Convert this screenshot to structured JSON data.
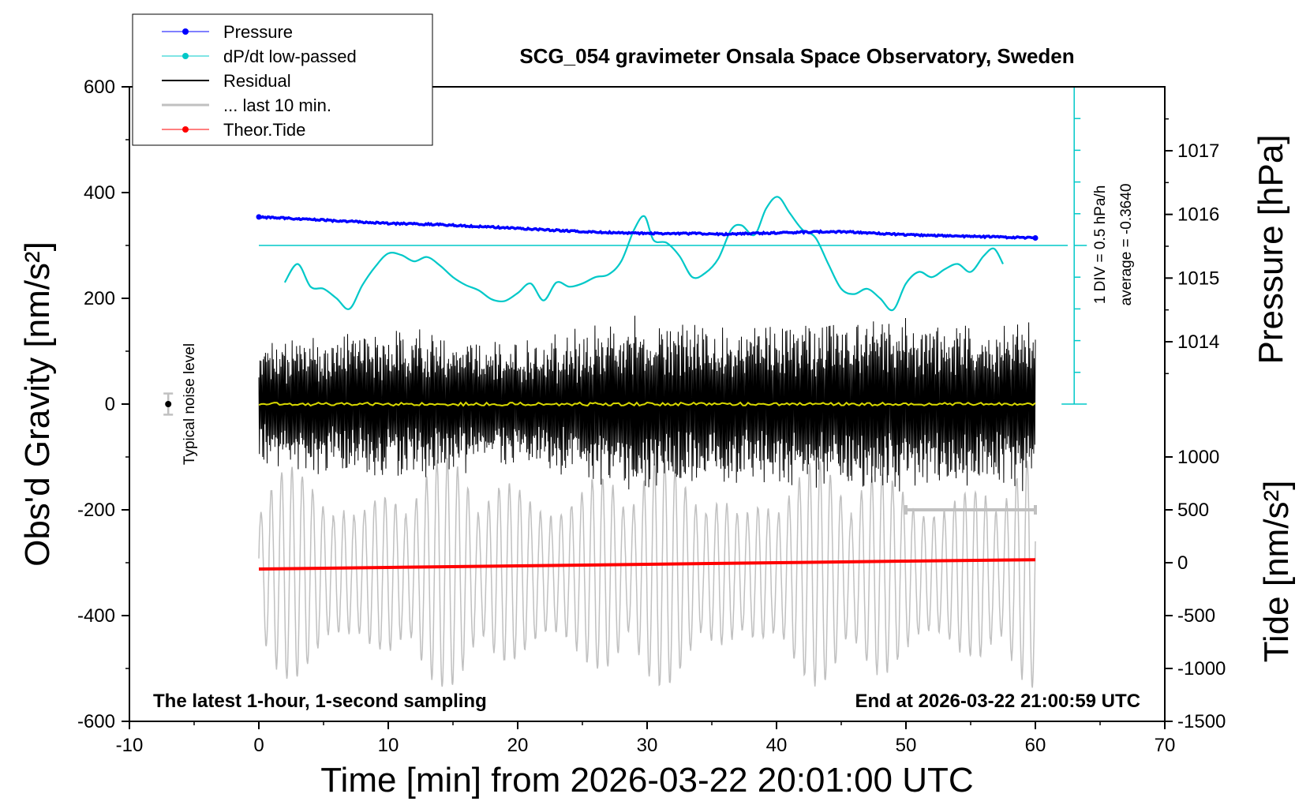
{
  "chart_data": {
    "type": "line",
    "title": "SCG_054 gravimeter Onsala Space Observatory, Sweden",
    "xlabel": "Time [min] from 2026-03-22 20:01:00 UTC",
    "ylabel_left": "Obs'd Gravity [nm/s²]",
    "ylabel_right_top": "Pressure [hPa]",
    "ylabel_right_bottom": "Tide [nm/s²]",
    "xlim": [
      -10,
      70
    ],
    "ylim": [
      -600,
      600
    ],
    "x_ticks": [
      "-10",
      "0",
      "10",
      "20",
      "30",
      "40",
      "50",
      "60",
      "70"
    ],
    "y_ticks": [
      "600",
      "400",
      "200",
      "0",
      "-200",
      "-400",
      "-600"
    ],
    "pressure_ticks": [
      "1017",
      "1016",
      "1015",
      "1014"
    ],
    "tide_ticks": [
      "1000",
      "500",
      "0",
      "-500",
      "-1000",
      "-1500"
    ],
    "legend": {
      "placement": "top-left",
      "entries": [
        {
          "label": "Pressure",
          "color": "#0000ff"
        },
        {
          "label": "dP/dt low-passed",
          "color": "#00c8c8"
        },
        {
          "label": "Residual",
          "color": "#000000"
        },
        {
          "label": "... last 10 min.",
          "color": "#c0c0c0"
        },
        {
          "label": "Theor.Tide",
          "color": "#ff0000"
        }
      ]
    },
    "annotations": {
      "bottom_left": "The latest 1-hour, 1-second sampling",
      "bottom_right": "End at 2026-03-22 21:00:59 UTC",
      "div_label": "1 DIV = 0.5 hPa/h",
      "average_label": "average = -0.3640",
      "noise_label": "Typical noise level"
    },
    "series": [
      {
        "name": "Pressure",
        "axis": "pressure",
        "x": [
          0,
          2,
          4,
          6,
          8,
          10,
          12,
          14,
          16,
          18,
          20,
          22,
          24,
          26,
          28,
          30,
          32,
          34,
          36,
          38,
          40,
          42,
          44,
          46,
          48,
          50,
          52,
          54,
          56,
          58,
          60
        ],
        "values": [
          1015.96,
          1015.94,
          1015.92,
          1015.9,
          1015.88,
          1015.86,
          1015.85,
          1015.84,
          1015.82,
          1015.8,
          1015.78,
          1015.76,
          1015.74,
          1015.72,
          1015.71,
          1015.7,
          1015.7,
          1015.7,
          1015.69,
          1015.7,
          1015.71,
          1015.72,
          1015.73,
          1015.72,
          1015.7,
          1015.68,
          1015.67,
          1015.66,
          1015.65,
          1015.64,
          1015.63
        ]
      },
      {
        "name": "dP/dt low-passed",
        "axis": "gravity",
        "x": [
          2,
          3,
          4,
          5,
          6,
          7,
          8,
          9,
          10,
          11,
          12,
          13,
          14,
          15,
          16,
          17,
          18,
          19,
          20,
          21,
          22,
          23,
          24,
          25,
          26,
          27,
          28,
          29,
          29.8,
          30.5,
          31.5,
          32.5,
          33.5,
          34.5,
          35.5,
          36.5,
          37.3,
          38.3,
          39.2,
          40.1,
          41,
          42,
          43,
          44,
          45,
          46,
          47,
          48,
          49,
          50,
          51,
          52,
          53,
          54,
          55,
          56,
          56.8,
          57.5
        ],
        "values": [
          230,
          265,
          222,
          218,
          200,
          180,
          225,
          260,
          285,
          282,
          270,
          278,
          262,
          240,
          225,
          215,
          198,
          195,
          210,
          228,
          196,
          230,
          222,
          228,
          240,
          245,
          270,
          330,
          355,
          310,
          305,
          280,
          240,
          248,
          275,
          330,
          338,
          320,
          370,
          392,
          362,
          330,
          315,
          265,
          218,
          208,
          218,
          200,
          178,
          228,
          250,
          240,
          255,
          265,
          250,
          280,
          294,
          265
        ]
      },
      {
        "name": "Residual",
        "axis": "gravity",
        "envelope": [
          {
            "x": 0,
            "amplitude": 120
          },
          {
            "x": 5,
            "amplitude": 140
          },
          {
            "x": 10,
            "amplitude": 150
          },
          {
            "x": 20,
            "amplitude": 120
          },
          {
            "x": 29.5,
            "amplitude": 170
          },
          {
            "x": 35,
            "amplitude": 150
          },
          {
            "x": 45,
            "amplitude": 170
          },
          {
            "x": 55,
            "amplitude": 160
          },
          {
            "x": 60,
            "amplitude": 170
          }
        ]
      },
      {
        "name": "... last 10 min.",
        "axis": "tide",
        "x_range": [
          0,
          60
        ],
        "mean": -320,
        "amplitude_range": [
          160,
          220
        ],
        "period_min": 0.8
      },
      {
        "name": "Theor.Tide",
        "axis": "tide",
        "x": [
          0,
          10,
          20,
          30,
          40,
          50,
          60
        ],
        "values": [
          -60,
          -45,
          -30,
          -15,
          0,
          15,
          28
        ]
      }
    ],
    "yellow_overlay": {
      "x_range": [
        0,
        60
      ],
      "value": 0
    },
    "noise_marker": {
      "x": -7,
      "y": 0,
      "error": 20
    },
    "last_10_min_bar": {
      "x": [
        50,
        60
      ],
      "y": -200
    },
    "reference_line_y": 300
  }
}
